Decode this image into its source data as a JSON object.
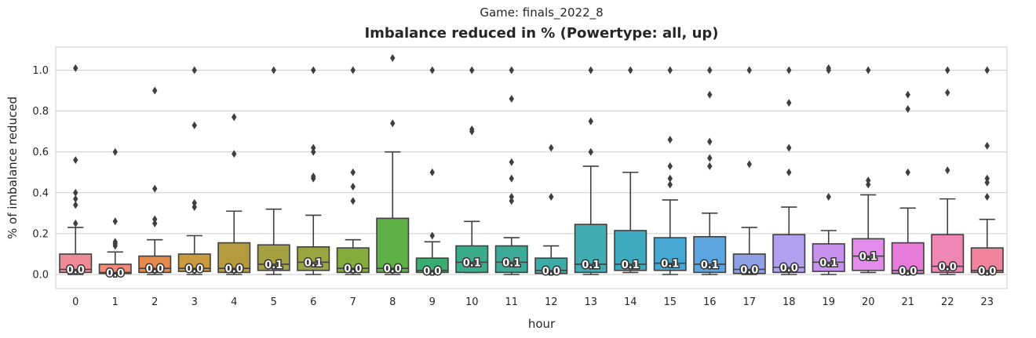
{
  "chart_data": {
    "type": "box",
    "suptitle": "Game: finals_2022_8",
    "title": "Imbalance reduced in % (Powertype: all, up)",
    "xlabel": "hour",
    "ylabel": "% of imbalance reduced",
    "ylim": [
      -0.05,
      1.11
    ],
    "yticks": [
      0.0,
      0.2,
      0.4,
      0.6,
      0.8,
      1.0
    ],
    "ytick_labels": [
      "0.0",
      "0.2",
      "0.4",
      "0.6",
      "0.8",
      "1.0"
    ],
    "grid": "horizontal",
    "categories": [
      "0",
      "1",
      "2",
      "3",
      "4",
      "5",
      "6",
      "7",
      "8",
      "9",
      "10",
      "11",
      "12",
      "13",
      "14",
      "15",
      "16",
      "17",
      "18",
      "19",
      "20",
      "21",
      "22",
      "23"
    ],
    "boxes": [
      {
        "x": "0",
        "color": "#f08a94",
        "q1": 0.01,
        "median": 0.025,
        "q3": 0.1,
        "whislo": 0.0,
        "whishi": 0.23,
        "fliers": [
          0.25,
          0.34,
          0.37,
          0.4,
          0.56,
          1.01
        ],
        "label": "0.0"
      },
      {
        "x": "1",
        "color": "#ef8b77",
        "q1": 0.005,
        "median": 0.01,
        "q3": 0.05,
        "whislo": 0.0,
        "whishi": 0.11,
        "fliers": [
          0.14,
          0.15,
          0.16,
          0.26,
          0.6
        ],
        "label": "0.0"
      },
      {
        "x": "2",
        "color": "#e5894e",
        "q1": 0.01,
        "median": 0.03,
        "q3": 0.09,
        "whislo": 0.0,
        "whishi": 0.17,
        "fliers": [
          0.25,
          0.27,
          0.42,
          0.9
        ],
        "label": "0.0"
      },
      {
        "x": "3",
        "color": "#c99a3e",
        "q1": 0.015,
        "median": 0.03,
        "q3": 0.1,
        "whislo": 0.0,
        "whishi": 0.19,
        "fliers": [
          0.33,
          0.35,
          0.73,
          1.0
        ],
        "label": "0.0"
      },
      {
        "x": "4",
        "color": "#b59b3e",
        "q1": 0.01,
        "median": 0.03,
        "q3": 0.155,
        "whislo": 0.0,
        "whishi": 0.31,
        "fliers": [
          0.59,
          0.77
        ],
        "label": "0.0"
      },
      {
        "x": "5",
        "color": "#a49f3f",
        "q1": 0.02,
        "median": 0.05,
        "q3": 0.145,
        "whislo": 0.0,
        "whishi": 0.32,
        "fliers": [
          1.0
        ],
        "label": "0.1"
      },
      {
        "x": "6",
        "color": "#9aa53f",
        "q1": 0.02,
        "median": 0.06,
        "q3": 0.135,
        "whislo": 0.0,
        "whishi": 0.29,
        "fliers": [
          0.47,
          0.48,
          0.6,
          0.62,
          1.0
        ],
        "label": "0.1"
      },
      {
        "x": "7",
        "color": "#84ac3c",
        "q1": 0.01,
        "median": 0.03,
        "q3": 0.13,
        "whislo": 0.0,
        "whishi": 0.17,
        "fliers": [
          0.36,
          0.43,
          0.5,
          1.0
        ],
        "label": "0.0"
      },
      {
        "x": "8",
        "color": "#5fb146",
        "q1": 0.01,
        "median": 0.03,
        "q3": 0.275,
        "whislo": 0.0,
        "whishi": 0.6,
        "fliers": [
          0.74,
          1.06
        ],
        "label": "0.0"
      },
      {
        "x": "9",
        "color": "#3aae70",
        "q1": 0.01,
        "median": 0.02,
        "q3": 0.08,
        "whislo": 0.0,
        "whishi": 0.16,
        "fliers": [
          0.19,
          0.5,
          1.0
        ],
        "label": "0.0"
      },
      {
        "x": "10",
        "color": "#3bac8b",
        "q1": 0.01,
        "median": 0.06,
        "q3": 0.14,
        "whislo": 0.01,
        "whishi": 0.26,
        "fliers": [
          0.7,
          0.71,
          1.0
        ],
        "label": "0.1"
      },
      {
        "x": "11",
        "color": "#3daa98",
        "q1": 0.01,
        "median": 0.06,
        "q3": 0.14,
        "whislo": 0.0,
        "whishi": 0.18,
        "fliers": [
          0.36,
          0.38,
          0.47,
          0.55,
          0.86,
          1.0
        ],
        "label": "0.1"
      },
      {
        "x": "12",
        "color": "#3eaca6",
        "q1": 0.005,
        "median": 0.02,
        "q3": 0.08,
        "whislo": 0.0,
        "whishi": 0.14,
        "fliers": [
          0.38,
          0.62
        ],
        "label": "0.0"
      },
      {
        "x": "13",
        "color": "#3fadb2",
        "q1": 0.01,
        "median": 0.05,
        "q3": 0.245,
        "whislo": 0.0,
        "whishi": 0.53,
        "fliers": [
          0.6,
          0.75,
          1.0
        ],
        "label": "0.1"
      },
      {
        "x": "14",
        "color": "#3eaabd",
        "q1": 0.02,
        "median": 0.05,
        "q3": 0.215,
        "whislo": 0.01,
        "whishi": 0.5,
        "fliers": [
          1.0
        ],
        "label": "0.1"
      },
      {
        "x": "15",
        "color": "#45a7d2",
        "q1": 0.02,
        "median": 0.055,
        "q3": 0.18,
        "whislo": 0.0,
        "whishi": 0.365,
        "fliers": [
          0.44,
          0.47,
          0.53,
          0.66,
          1.0
        ],
        "label": "0.1"
      },
      {
        "x": "16",
        "color": "#5ba6e0",
        "q1": 0.01,
        "median": 0.05,
        "q3": 0.185,
        "whislo": 0.0,
        "whishi": 0.3,
        "fliers": [
          0.53,
          0.57,
          0.65,
          0.88,
          1.0
        ],
        "label": "0.1"
      },
      {
        "x": "17",
        "color": "#8fa1e6",
        "q1": 0.005,
        "median": 0.025,
        "q3": 0.1,
        "whislo": 0.0,
        "whishi": 0.23,
        "fliers": [
          0.54,
          1.0
        ],
        "label": "0.0"
      },
      {
        "x": "18",
        "color": "#b1a0ef",
        "q1": 0.01,
        "median": 0.035,
        "q3": 0.195,
        "whislo": 0.0,
        "whishi": 0.33,
        "fliers": [
          0.5,
          0.62,
          0.84,
          1.0
        ],
        "label": "0.0"
      },
      {
        "x": "19",
        "color": "#c692ee",
        "q1": 0.015,
        "median": 0.06,
        "q3": 0.15,
        "whislo": 0.0,
        "whishi": 0.215,
        "fliers": [
          0.38,
          1.0,
          1.01
        ],
        "label": "0.1"
      },
      {
        "x": "20",
        "color": "#e48cec",
        "q1": 0.02,
        "median": 0.09,
        "q3": 0.175,
        "whislo": 0.01,
        "whishi": 0.39,
        "fliers": [
          0.44,
          0.46,
          1.0
        ],
        "label": "0.1"
      },
      {
        "x": "21",
        "color": "#e87ad9",
        "q1": 0.005,
        "median": 0.02,
        "q3": 0.155,
        "whislo": 0.0,
        "whishi": 0.325,
        "fliers": [
          0.5,
          0.81,
          0.88
        ],
        "label": "0.0"
      },
      {
        "x": "22",
        "color": "#ef87b4",
        "q1": 0.01,
        "median": 0.04,
        "q3": 0.195,
        "whislo": 0.0,
        "whishi": 0.37,
        "fliers": [
          0.51,
          0.89,
          1.0
        ],
        "label": "0.0"
      },
      {
        "x": "23",
        "color": "#f0849d",
        "q1": 0.01,
        "median": 0.02,
        "q3": 0.13,
        "whislo": 0.0,
        "whishi": 0.27,
        "fliers": [
          0.38,
          0.45,
          0.47,
          0.63,
          1.0
        ],
        "label": "0.0"
      }
    ]
  }
}
